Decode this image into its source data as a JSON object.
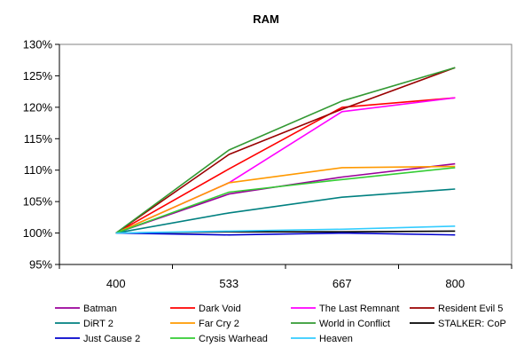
{
  "chart_data": {
    "type": "line",
    "title": "RAM",
    "xlabel": "",
    "ylabel": "",
    "categories": [
      "400",
      "533",
      "667",
      "800"
    ],
    "y_tick_labels": [
      "95%",
      "100%",
      "105%",
      "110%",
      "115%",
      "120%",
      "125%",
      "130%"
    ],
    "y_ticks": [
      95,
      100,
      105,
      110,
      115,
      120,
      125,
      130
    ],
    "ylim": [
      95,
      130
    ],
    "grid": false,
    "legend_position": "bottom",
    "series": [
      {
        "name": "Batman",
        "color": "#990099",
        "values": [
          100,
          106.2,
          108.9,
          111.0
        ]
      },
      {
        "name": "Dark Void",
        "color": "#ff0000",
        "values": [
          100,
          110.2,
          120.0,
          121.5
        ]
      },
      {
        "name": "The Last Remnant",
        "color": "#ff00ff",
        "values": [
          100,
          108.0,
          119.3,
          121.5
        ]
      },
      {
        "name": "Resident Evil 5",
        "color": "#990000",
        "values": [
          100,
          112.5,
          119.7,
          126.3
        ]
      },
      {
        "name": "DiRT 2",
        "color": "#008080",
        "values": [
          100,
          103.2,
          105.7,
          107.0
        ]
      },
      {
        "name": "Far Cry 2",
        "color": "#ff9900",
        "values": [
          100,
          108.0,
          110.4,
          110.6
        ]
      },
      {
        "name": "World in Conflict",
        "color": "#339933",
        "values": [
          100,
          113.2,
          121.0,
          126.3
        ]
      },
      {
        "name": "STALKER: CoP",
        "color": "#000000",
        "values": [
          100,
          100.2,
          100.2,
          100.3
        ]
      },
      {
        "name": "Just Cause 2",
        "color": "#0000cc",
        "values": [
          100,
          99.7,
          100.0,
          99.7
        ]
      },
      {
        "name": "Crysis Warhead",
        "color": "#33cc33",
        "values": [
          100,
          106.5,
          108.5,
          110.4
        ]
      },
      {
        "name": "Heaven",
        "color": "#33ccff",
        "values": [
          100,
          100.3,
          100.6,
          101.1
        ]
      }
    ]
  }
}
